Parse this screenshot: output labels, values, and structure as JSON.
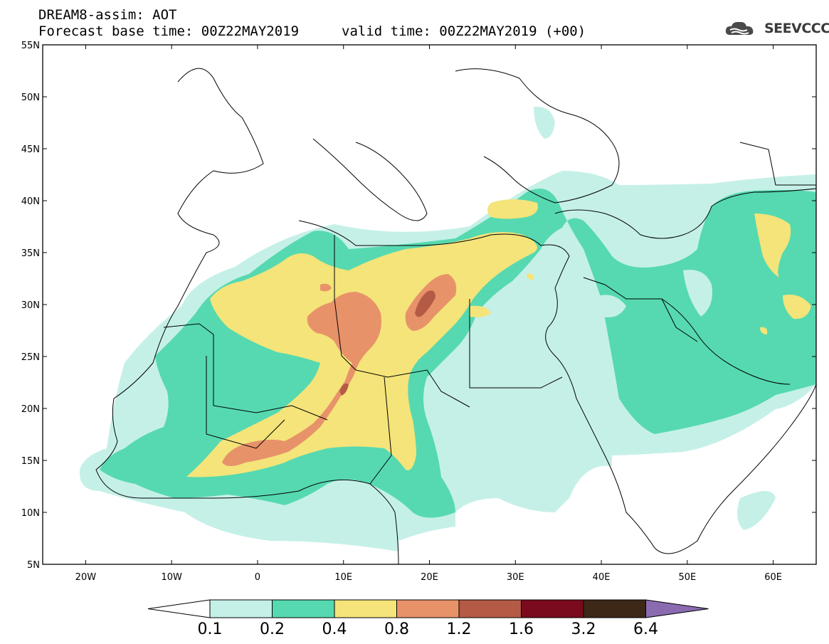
{
  "header": {
    "line1": "DREAM8-assim: AOT",
    "line2": "Forecast base time: 00Z22MAY2019",
    "valid": "valid time: 00Z22MAY2019 (+00)"
  },
  "logo": {
    "text": "SEEVCCC",
    "icon": "cloud-icon"
  },
  "map": {
    "lon_range": [
      -25,
      65
    ],
    "lat_range": [
      5,
      55
    ],
    "lat_ticks": [
      "55N",
      "50N",
      "45N",
      "40N",
      "35N",
      "30N",
      "25N",
      "20N",
      "15N",
      "10N",
      "5N"
    ],
    "lat_values": [
      55,
      50,
      45,
      40,
      35,
      30,
      25,
      20,
      15,
      10,
      5
    ],
    "lon_ticks": [
      "20W",
      "10W",
      "0",
      "10E",
      "20E",
      "30E",
      "40E",
      "50E",
      "60E"
    ],
    "lon_values": [
      -20,
      -10,
      0,
      10,
      20,
      30,
      40,
      50,
      60
    ]
  },
  "colorbar": {
    "labels": [
      "0.1",
      "0.2",
      "0.4",
      "0.8",
      "1.2",
      "1.6",
      "3.2",
      "6.4"
    ],
    "colors": [
      "#ffffff",
      "#c5f0e8",
      "#56d9b0",
      "#f4e47a",
      "#e8926a",
      "#b55a45",
      "#7a0a1e",
      "#3d2817",
      "#8a6bb0"
    ]
  }
}
